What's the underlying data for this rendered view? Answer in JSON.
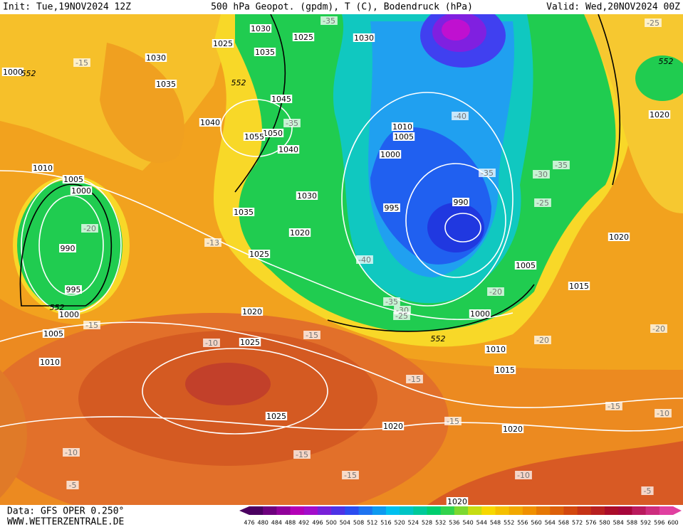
{
  "header": {
    "init": "Init: Tue,19NOV2024 12Z",
    "title": "500 hPa Geopot. (gpdm), T (C), Bodendruck (hPa)",
    "valid": "Valid: Wed,20NOV2024 00Z"
  },
  "map": {
    "isobar_labels": [
      "1030",
      "1025",
      "1030",
      "1025",
      "1035",
      "1030",
      "1000",
      "1035",
      "1045",
      "1040",
      "1050",
      "1055",
      "1040",
      "1010",
      "1005",
      "1000",
      "1010",
      "1005",
      "1000",
      "1030",
      "1035",
      "995",
      "990",
      "1020",
      "990",
      "1025",
      "1005",
      "995",
      "1015",
      "1000",
      "1020",
      "1000",
      "1005",
      "1025",
      "1010",
      "1010",
      "1015",
      "1025",
      "1020",
      "1020",
      "1020",
      "1020",
      "1020"
    ],
    "temperature_labels": [
      "-35",
      "-25",
      "-15",
      "-35",
      "-40",
      "-35",
      "-30",
      "-35",
      "-25",
      "-20",
      "-13",
      "-40",
      "-35",
      "-30",
      "-25",
      "-20",
      "-15",
      "-15",
      "-10",
      "-20",
      "-20",
      "-15",
      "-15",
      "-10",
      "-15",
      "-10",
      "-15",
      "-15",
      "-10",
      "-5",
      "-5"
    ],
    "height_labels": [
      "552",
      "552",
      "552",
      "552",
      "552"
    ]
  },
  "footer": {
    "source": "Data: GFS OPER 0.250°",
    "website": "WWW.WETTERZENTRALE.DE",
    "colorbar": [
      "476",
      "480",
      "484",
      "488",
      "492",
      "496",
      "500",
      "504",
      "508",
      "512",
      "516",
      "520",
      "524",
      "528",
      "532",
      "536",
      "540",
      "544",
      "548",
      "552",
      "556",
      "560",
      "564",
      "568",
      "572",
      "576",
      "580",
      "584",
      "588",
      "592",
      "596",
      "600"
    ]
  }
}
